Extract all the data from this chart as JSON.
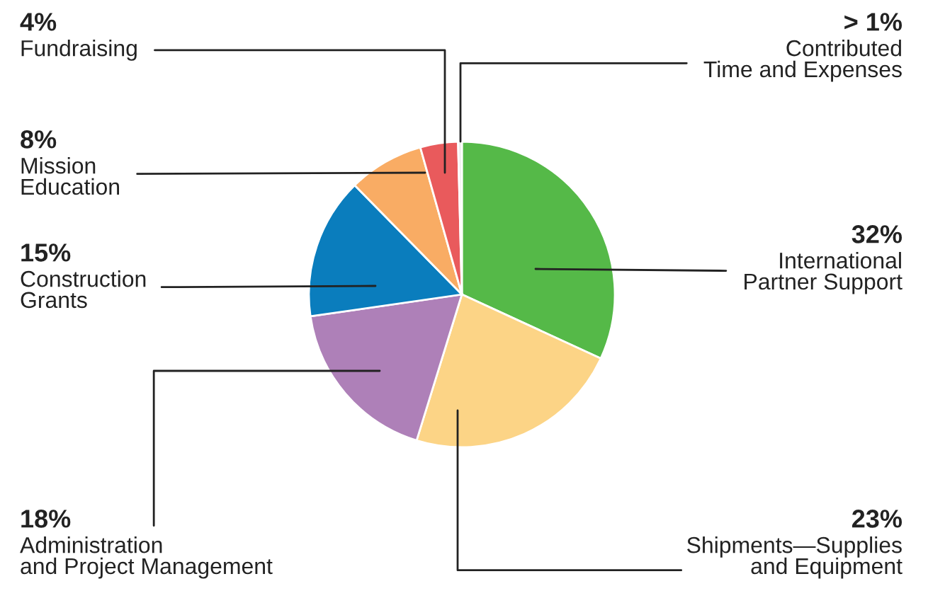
{
  "chart_data": {
    "type": "pie",
    "categories": [
      "International\nPartner Support",
      "Shipments—Supplies\nand Equipment",
      "Administration\nand Project Management",
      "Construction\nGrants",
      "Mission\nEducation",
      "Fundraising",
      "Contributed\nTime and Expenses"
    ],
    "values": [
      32,
      23,
      18,
      15,
      8,
      4,
      0.4
    ],
    "colors": [
      "#55b948",
      "#fcd486",
      "#ae80b8",
      "#0a7dbd",
      "#f9ac64",
      "#e95a5c",
      "#eeeeee"
    ],
    "value_labels": [
      "32%",
      "23%",
      "18%",
      "15%",
      "8%",
      "4%",
      "> 1%"
    ]
  }
}
